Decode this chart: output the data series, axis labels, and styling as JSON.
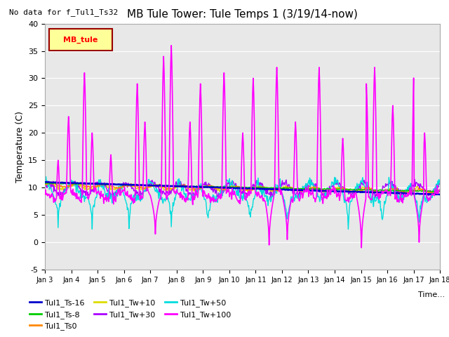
{
  "title": "MB Tule Tower: Tule Temps 1 (3/19/14-now)",
  "no_data_text": "No data for f_Tul1_Ts32",
  "ylabel": "Temperature (C)",
  "xlabel": "Time...",
  "ylim": [
    -5,
    40
  ],
  "xlim": [
    0,
    15
  ],
  "xtick_labels": [
    "Jan 3",
    "Jan 4",
    "Jan 5",
    "Jan 6",
    "Jan 7",
    "Jan 8",
    "Jan 9",
    "Jan 10",
    "Jan 11",
    "Jan 12",
    "Jan 13",
    "Jan 14",
    "Jan 15",
    "Jan 16",
    "Jan 17",
    "Jan 18"
  ],
  "xtick_positions": [
    0,
    1,
    2,
    3,
    4,
    5,
    6,
    7,
    8,
    9,
    10,
    11,
    12,
    13,
    14,
    15
  ],
  "ytick_labels": [
    "-5",
    "0",
    "5",
    "10",
    "15",
    "20",
    "25",
    "30",
    "35",
    "40"
  ],
  "ytick_positions": [
    -5,
    0,
    5,
    10,
    15,
    20,
    25,
    30,
    35,
    40
  ],
  "series": {
    "Tul1_Ts-16": {
      "color": "#0000cc",
      "linewidth": 1.8
    },
    "Tul1_Ts-8": {
      "color": "#00cc00",
      "linewidth": 1.0
    },
    "Tul1_Ts0": {
      "color": "#ff8800",
      "linewidth": 1.0
    },
    "Tul1_Tw+10": {
      "color": "#dddd00",
      "linewidth": 1.0
    },
    "Tul1_Tw+30": {
      "color": "#aa00ff",
      "linewidth": 1.0
    },
    "Tul1_Tw+50": {
      "color": "#00dddd",
      "linewidth": 1.0
    },
    "Tul1_Tw+100": {
      "color": "#ff00ff",
      "linewidth": 1.2
    }
  },
  "legend_box_label": "MB_tule",
  "legend_box_color": "#ffff99",
  "legend_box_border": "#990000",
  "bg_color": "#e8e8e8",
  "title_fontsize": 11,
  "axis_fontsize": 9,
  "tick_fontsize": 8
}
